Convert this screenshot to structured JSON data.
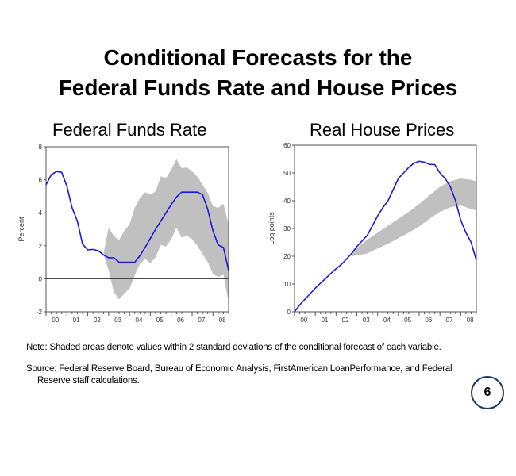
{
  "slide": {
    "title_line1": "Conditional Forecasts for the",
    "title_line2": "Federal Funds Rate and House Prices",
    "note": "Note:  Shaded areas denote values within 2 standard deviations of the conditional forecast of each variable.",
    "source_line1": "Source:  Federal Reserve Board, Bureau of Economic Analysis, FirstAmerican LoanPerformance, and Federal",
    "source_line2": "Reserve staff calculations.",
    "page_number": "6",
    "colors": {
      "line": "#1a1adb",
      "band": "#c0c0c0",
      "badge": "#1f3864"
    }
  },
  "chart_data": [
    {
      "type": "line",
      "title": "Federal Funds Rate",
      "xlabel": "",
      "ylabel": "Percent",
      "xlim": [
        2000,
        2008.75
      ],
      "ylim": [
        -2,
        8
      ],
      "yticks": [
        -2,
        0,
        2,
        4,
        6,
        8
      ],
      "xtick_labels": [
        "00",
        "01",
        "02",
        "03",
        "04",
        "05",
        "06",
        "07",
        "08"
      ],
      "zero_line": true,
      "series": [
        {
          "name": "Federal funds rate",
          "x": [
            2000,
            2000.25,
            2000.5,
            2000.75,
            2001,
            2001.25,
            2001.5,
            2001.75,
            2002,
            2002.25,
            2002.5,
            2002.75,
            2003,
            2003.25,
            2003.5,
            2003.75,
            2004,
            2004.25,
            2004.5,
            2004.75,
            2005,
            2005.25,
            2005.5,
            2005.75,
            2006,
            2006.25,
            2006.5,
            2006.75,
            2007,
            2007.25,
            2007.5,
            2007.75,
            2008,
            2008.25,
            2008.5,
            2008.75
          ],
          "y": [
            5.7,
            6.3,
            6.5,
            6.45,
            5.6,
            4.3,
            3.5,
            2.1,
            1.75,
            1.78,
            1.7,
            1.45,
            1.27,
            1.27,
            1.0,
            1.0,
            1.0,
            1.0,
            1.4,
            1.9,
            2.45,
            3.0,
            3.5,
            4.0,
            4.5,
            4.95,
            5.25,
            5.25,
            5.25,
            5.25,
            5.1,
            4.2,
            2.9,
            2.05,
            1.9,
            0.5
          ]
        }
      ],
      "band": {
        "name": "2 standard deviation band",
        "x": [
          2002.75,
          2003,
          2003.25,
          2003.5,
          2003.75,
          2004,
          2004.25,
          2004.5,
          2004.75,
          2005,
          2005.25,
          2005.5,
          2005.75,
          2006,
          2006.25,
          2006.5,
          2006.75,
          2007,
          2007.25,
          2007.5,
          2007.75,
          2008,
          2008.25,
          2008.5,
          2008.75
        ],
        "upper": [
          1.5,
          3.1,
          2.6,
          2.35,
          2.9,
          3.3,
          4.3,
          4.9,
          5.25,
          5.1,
          5.3,
          6.2,
          6.1,
          6.6,
          7.25,
          6.7,
          6.75,
          6.5,
          6.2,
          5.7,
          5.2,
          4.4,
          4.3,
          4.55,
          3.3
        ],
        "lower": [
          1.5,
          0.5,
          -0.8,
          -1.25,
          -0.9,
          -0.6,
          0.2,
          0.9,
          1.2,
          0.95,
          1.3,
          2.05,
          1.95,
          2.4,
          3.1,
          2.5,
          2.6,
          2.4,
          2.0,
          1.5,
          1.0,
          0.3,
          0.1,
          0.25,
          -1.4
        ]
      }
    },
    {
      "type": "line",
      "title": "Real House Prices",
      "xlabel": "",
      "ylabel": "Log points",
      "xlim": [
        2000,
        2008.75
      ],
      "ylim": [
        0,
        60
      ],
      "yticks": [
        0,
        10,
        20,
        30,
        40,
        50,
        60
      ],
      "xtick_labels": [
        "00",
        "01",
        "02",
        "03",
        "04",
        "05",
        "06",
        "07",
        "08"
      ],
      "zero_line": false,
      "series": [
        {
          "name": "Real house prices",
          "x": [
            2000,
            2000.25,
            2000.5,
            2000.75,
            2001,
            2001.25,
            2001.5,
            2001.75,
            2002,
            2002.25,
            2002.5,
            2002.75,
            2003,
            2003.25,
            2003.5,
            2003.75,
            2004,
            2004.25,
            2004.5,
            2004.75,
            2005,
            2005.25,
            2005.5,
            2005.75,
            2006,
            2006.25,
            2006.5,
            2006.75,
            2007,
            2007.25,
            2007.5,
            2007.75,
            2008,
            2008.25,
            2008.5,
            2008.75
          ],
          "y": [
            0,
            2.5,
            4.5,
            6.5,
            8.5,
            10.3,
            12,
            13.8,
            15.5,
            17,
            19,
            21,
            23.5,
            25.5,
            27.5,
            31,
            34.5,
            37.5,
            40,
            44,
            48,
            50,
            52,
            53.5,
            54.2,
            53.9,
            53.1,
            53,
            50,
            48,
            45,
            40,
            33,
            28.5,
            25,
            18.5
          ]
        }
      ],
      "band": {
        "name": "2 standard deviation band",
        "x": [
          2002.75,
          2003,
          2003.5,
          2004,
          2004.5,
          2005,
          2005.5,
          2006,
          2006.5,
          2007,
          2007.5,
          2008,
          2008.5,
          2008.75
        ],
        "upper": [
          21,
          23,
          26,
          28.5,
          31,
          33.5,
          36,
          38.8,
          42,
          45,
          47,
          48,
          47.5,
          47
        ],
        "lower": [
          20,
          20.3,
          21,
          22.8,
          24.5,
          26.5,
          28.5,
          30.7,
          33.5,
          36,
          37.6,
          38.3,
          37,
          36.5
        ]
      }
    }
  ]
}
